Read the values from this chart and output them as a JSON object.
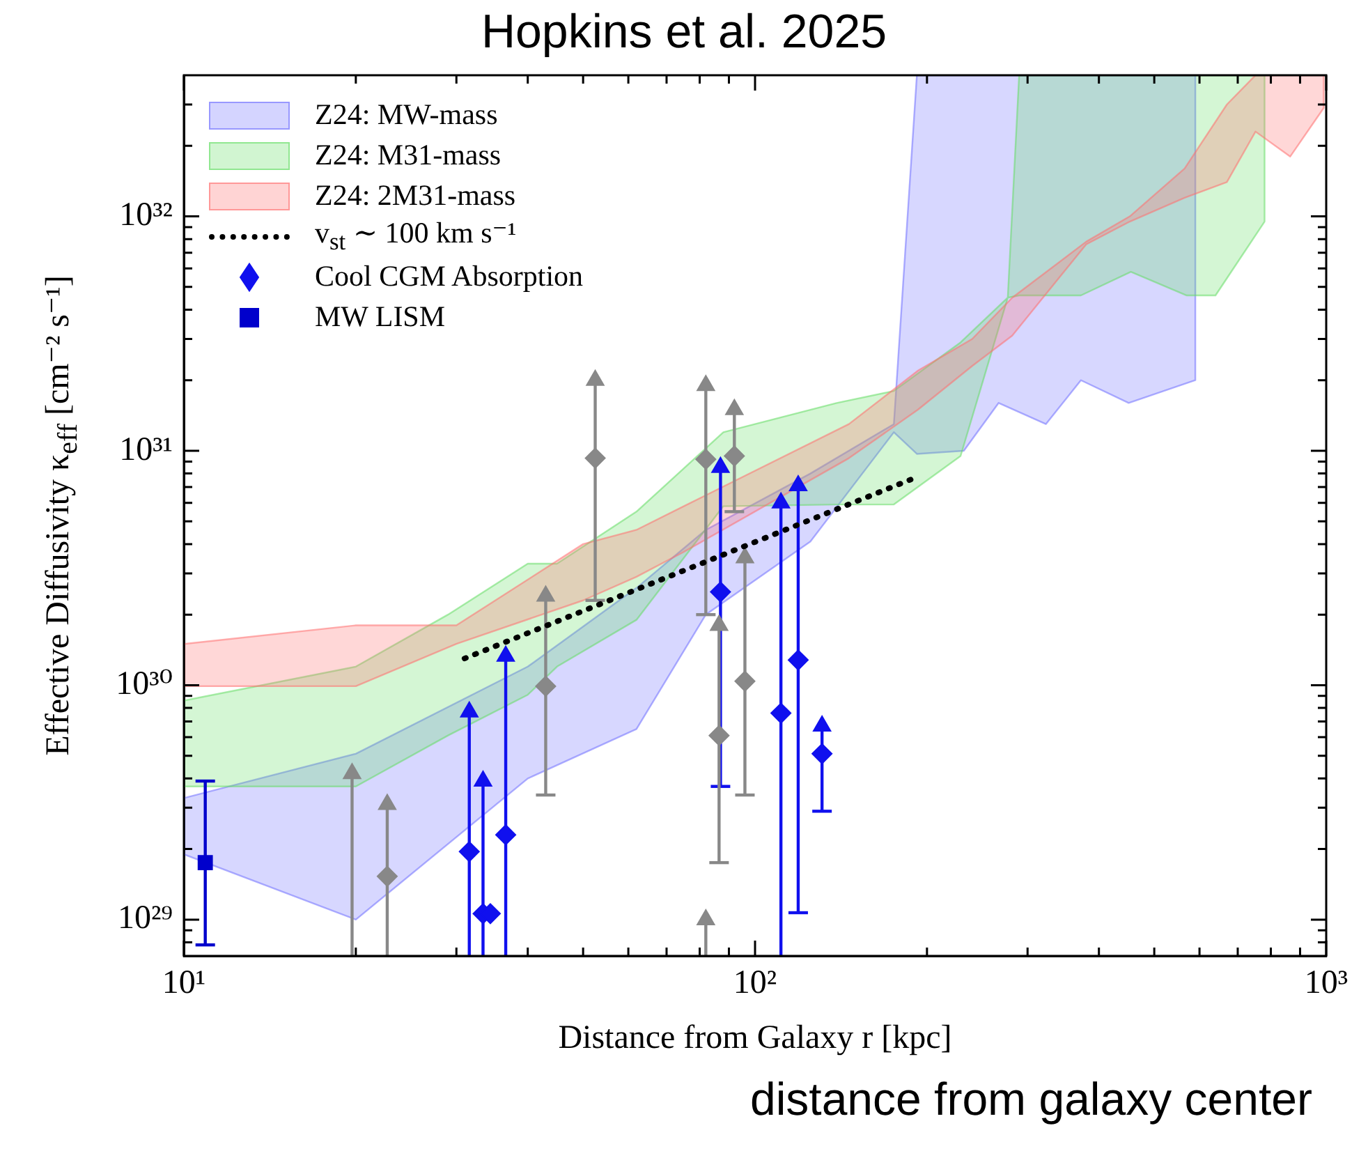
{
  "chart_data": {
    "type": "scatter",
    "title": "Hopkins et al. 2025",
    "xlabel": "Distance from Galaxy r [kpc]",
    "ylabel": "Effective Diffusivity κ$_{eff}$ [cm⁻² s⁻¹]",
    "annotations": [
      "distance from galaxy center"
    ],
    "log": "xy",
    "grid": false,
    "legend": "top left",
    "xlim": [
      10,
      1000
    ],
    "ylim": [
      7e+28,
      4e+32
    ],
    "xticks": [
      {
        "value": 10,
        "label": "10¹"
      },
      {
        "value": 20,
        "label": null
      },
      {
        "value": 30,
        "label": null
      },
      {
        "value": 40,
        "label": null
      },
      {
        "value": 50,
        "label": null
      },
      {
        "value": 60,
        "label": null
      },
      {
        "value": 70,
        "label": null
      },
      {
        "value": 80,
        "label": null
      },
      {
        "value": 90,
        "label": null
      },
      {
        "value": 100,
        "label": "10²"
      },
      {
        "value": 200,
        "label": null
      },
      {
        "value": 300,
        "label": null
      },
      {
        "value": 400,
        "label": null
      },
      {
        "value": 500,
        "label": null
      },
      {
        "value": 600,
        "label": null
      },
      {
        "value": 700,
        "label": null
      },
      {
        "value": 800,
        "label": null
      },
      {
        "value": 900,
        "label": null
      },
      {
        "value": 1000,
        "label": "10³"
      }
    ],
    "yticks": [
      {
        "value": 8e+28,
        "label": null
      },
      {
        "value": 9e+28,
        "label": null
      },
      {
        "value": 1e+29,
        "label": "10²⁹"
      },
      {
        "value": 2e+29,
        "label": null
      },
      {
        "value": 3e+29,
        "label": null
      },
      {
        "value": 4e+29,
        "label": null
      },
      {
        "value": 5e+29,
        "label": null
      },
      {
        "value": 6e+29,
        "label": null
      },
      {
        "value": 7e+29,
        "label": null
      },
      {
        "value": 8e+29,
        "label": null
      },
      {
        "value": 9e+29,
        "label": null
      },
      {
        "value": 1e+30,
        "label": "10³⁰"
      },
      {
        "value": 2e+30,
        "label": null
      },
      {
        "value": 3e+30,
        "label": null
      },
      {
        "value": 4e+30,
        "label": null
      },
      {
        "value": 5e+30,
        "label": null
      },
      {
        "value": 6e+30,
        "label": null
      },
      {
        "value": 7e+30,
        "label": null
      },
      {
        "value": 8e+30,
        "label": null
      },
      {
        "value": 9e+30,
        "label": null
      },
      {
        "value": 1e+31,
        "label": "10³¹"
      },
      {
        "value": 2e+31,
        "label": null
      },
      {
        "value": 3e+31,
        "label": null
      },
      {
        "value": 4e+31,
        "label": null
      },
      {
        "value": 5e+31,
        "label": null
      },
      {
        "value": 6e+31,
        "label": null
      },
      {
        "value": 7e+31,
        "label": null
      },
      {
        "value": 8e+31,
        "label": null
      },
      {
        "value": 9e+31,
        "label": null
      },
      {
        "value": 1e+32,
        "label": "10³²"
      },
      {
        "value": 2e+32,
        "label": null
      },
      {
        "value": 3e+32,
        "label": null
      }
    ],
    "series": [
      {
        "type": "area",
        "name": "Z24: MW-mass",
        "color": "#7070ff",
        "x": [
          10,
          20,
          40,
          62,
          82,
          125,
          175,
          192,
          232,
          267,
          323,
          372,
          451,
          590
        ],
        "values": [
          null,
          null,
          null,
          null,
          null,
          null,
          null,
          null,
          null,
          null,
          null,
          null,
          null,
          null
        ],
        "lower": [
          1.9e+29,
          1e+29,
          4e+29,
          6.5e+29,
          2e+30,
          4.1e+30,
          1.2e+31,
          9.7e+30,
          1e+31,
          1.6e+31,
          1.3e+31,
          2e+31,
          1.6e+31,
          2e+31
        ],
        "upper": [
          3.3e+29,
          5.1e+29,
          1.2e+30,
          2.6e+30,
          4.6e+30,
          8e+30,
          1.3e+31,
          4e+32,
          4e+32,
          4e+32,
          4e+32,
          4e+32,
          4e+32,
          4e+32
        ]
      },
      {
        "type": "area",
        "name": "Z24: M31-mass",
        "color": "#66dd66",
        "x": [
          10,
          20,
          29,
          40,
          45,
          62,
          88,
          139,
          175,
          229,
          277,
          290,
          372,
          455,
          570,
          640,
          780
        ],
        "values": [
          null,
          null,
          null,
          null,
          null,
          null,
          null,
          null,
          null,
          null,
          null,
          null,
          null,
          null,
          null,
          null,
          null
        ],
        "lower": [
          3.7e+29,
          3.7e+29,
          6.1e+29,
          9.1e+29,
          1.2e+30,
          1.9e+30,
          5.8e+30,
          5.9e+30,
          5.9e+30,
          9.5e+30,
          4.5e+31,
          4.6e+31,
          4.6e+31,
          5.8e+31,
          4.6e+31,
          4.6e+31,
          9.5e+31
        ],
        "upper": [
          8.6e+29,
          1.2e+30,
          2e+30,
          3.3e+30,
          3.3e+30,
          5.5e+30,
          1.2e+31,
          1.6e+31,
          1.8e+31,
          2.9e+31,
          4.5e+31,
          4e+32,
          4e+32,
          4e+32,
          4e+32,
          4e+32,
          4e+32
        ]
      },
      {
        "type": "area",
        "name": "Z24: 2M31-mass",
        "color": "#ff7070",
        "x": [
          10,
          20,
          30,
          50,
          62,
          75,
          146,
          193,
          240,
          282,
          380,
          453,
          565,
          670,
          752,
          865,
          990
        ],
        "values": [
          null,
          null,
          null,
          null,
          null,
          null,
          null,
          null,
          null,
          null,
          null,
          null,
          null,
          null,
          null,
          null,
          null
        ],
        "lower": [
          9.9e+29,
          9.9e+29,
          1.5e+30,
          2.3e+30,
          2.9e+30,
          3.7e+30,
          9.3e+30,
          1.5e+31,
          2.3e+31,
          3.1e+31,
          7.6e+31,
          9.5e+31,
          1.2e+32,
          1.4e+32,
          2.3e+32,
          1.8e+32,
          2.9e+32
        ],
        "upper": [
          1.5e+30,
          1.8e+30,
          1.8e+30,
          4e+30,
          4.6e+30,
          5.8e+30,
          1.3e+31,
          2.2e+31,
          3e+31,
          4.5e+31,
          7.8e+31,
          1e+32,
          1.6e+32,
          3e+32,
          4e+32,
          4e+32,
          4e+32
        ]
      },
      {
        "type": "line",
        "name": "v$_{st}$ ∼ 100 km s⁻¹",
        "color": "#000000",
        "line_style": "dotted",
        "marker": "none",
        "x": [
          31,
          194
        ],
        "values": [
          1.3e+30,
          7.8e+30
        ]
      },
      {
        "type": "scatter",
        "name": "Cool CGM Absorption",
        "color": "#1010ee",
        "marker": "diamond",
        "x": [
          31.6,
          33.4,
          34.4,
          36.6,
          87,
          111,
          119,
          131
        ],
        "values": [
          1.95e+29,
          1.06e+29,
          1.06e+29,
          2.3e+29,
          2.5e+30,
          7.6e+29,
          1.28e+30,
          5.1e+29
        ],
        "errors": [
          [
            7e+28,
            7.7e+29
          ],
          [
            7e+28,
            3.9e+29
          ],
          null,
          [
            7e+28,
            1.33e+30
          ],
          [
            3.7e+29,
            8.5e+30
          ],
          [
            7e+28,
            6e+30
          ],
          [
            1.07e+29,
            7.1e+30
          ],
          [
            2.9e+29,
            6.7e+29
          ]
        ]
      },
      {
        "type": "scatter",
        "color": "#888888",
        "marker": "diamond",
        "x": [
          22.7,
          43,
          52.5,
          82,
          86.5,
          92,
          96
        ],
        "values": [
          1.53e+29,
          9.9e+29,
          9.3e+30,
          9.2e+30,
          6.1e+29,
          9.5e+30,
          1.04e+30
        ],
        "errors": [
          [
            7e+28,
            3.1e+29
          ],
          [
            3.4e+29,
            2.4e+30
          ],
          [
            2.3e+30,
            2e+31
          ],
          [
            2e+30,
            1.9e+31
          ],
          [
            1.75e+29,
            1.8e+30
          ],
          [
            5.5e+30,
            1.5e+31
          ],
          [
            3.4e+29,
            3.5e+30
          ]
        ]
      },
      {
        "type": "scatter",
        "color": "#1010ee",
        "marker": "triangle",
        "x": [
          31.6,
          33.4,
          36.6,
          87,
          111,
          119,
          131
        ],
        "values": [
          7.7e+29,
          3.9e+29,
          1.33e+30,
          8.5e+30,
          6e+30,
          7.1e+30,
          6.7e+29
        ]
      },
      {
        "type": "scatter",
        "color": "#888888",
        "marker": "triangle",
        "x": [
          19.7,
          22.7,
          43,
          52.5,
          82,
          82,
          86.5,
          92,
          96
        ],
        "values": [
          4.2e+29,
          3.1e+29,
          2.4e+30,
          2e+31,
          1.9e+31,
          1e+29,
          1.8e+30,
          1.5e+31,
          3.5e+30
        ],
        "errors": [
          [
            7e+28,
            4.2e+29
          ],
          null,
          null,
          null,
          null,
          [
            7e+28,
            1e+29
          ],
          null,
          null,
          null
        ]
      },
      {
        "type": "scatter",
        "name": "MW LISM",
        "color": "#0000cc",
        "marker": "square",
        "x": [
          10.9
        ],
        "values": [
          1.75e+29
        ],
        "errors": [
          [
            7.8e+28,
            3.9e+29
          ]
        ]
      }
    ]
  }
}
